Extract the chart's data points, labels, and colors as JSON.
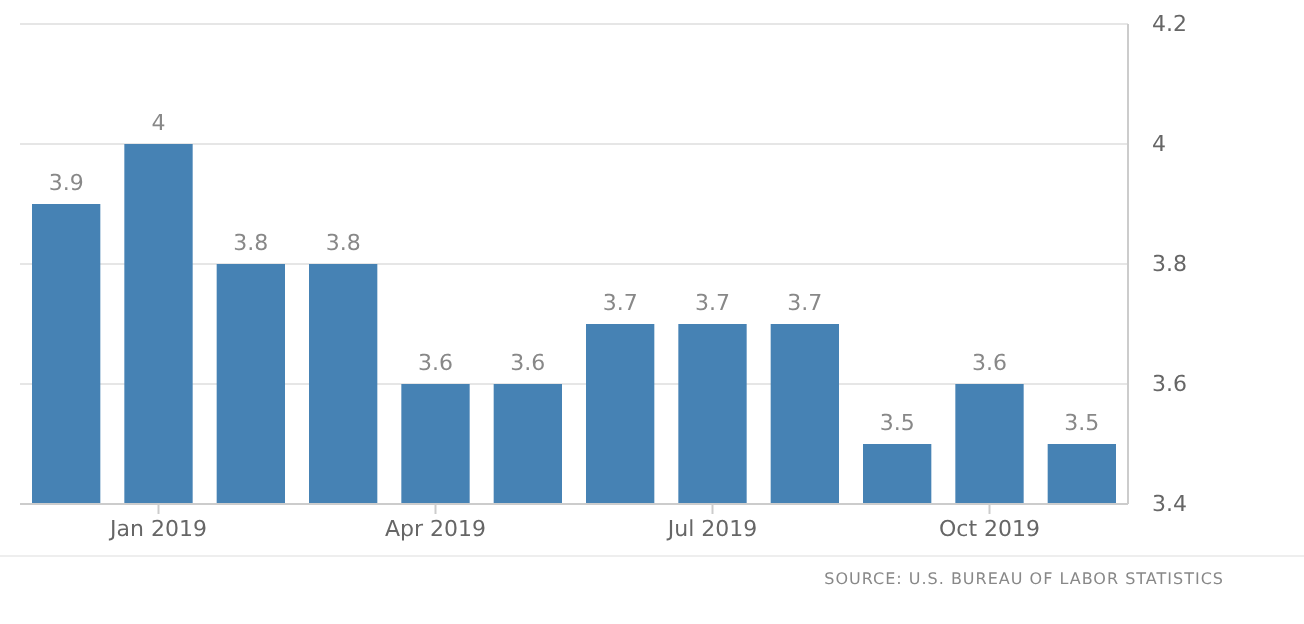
{
  "chart_data": {
    "type": "bar",
    "categories": [
      null,
      "Jan 2019",
      null,
      null,
      "Apr 2019",
      null,
      null,
      "Jul 2019",
      null,
      null,
      "Oct 2019",
      null
    ],
    "values": [
      3.9,
      4,
      3.8,
      3.8,
      3.6,
      3.6,
      3.7,
      3.7,
      3.7,
      3.5,
      3.6,
      3.5
    ],
    "color": "#4682b4",
    "ylim": [
      3.4,
      4.2
    ],
    "yticks": [
      3.4,
      3.6,
      3.8,
      4,
      4.2
    ],
    "grid": "y",
    "data_labels": true,
    "annotations": [
      "SOURCE: U.S. BUREAU OF LABOR STATISTICS"
    ]
  }
}
